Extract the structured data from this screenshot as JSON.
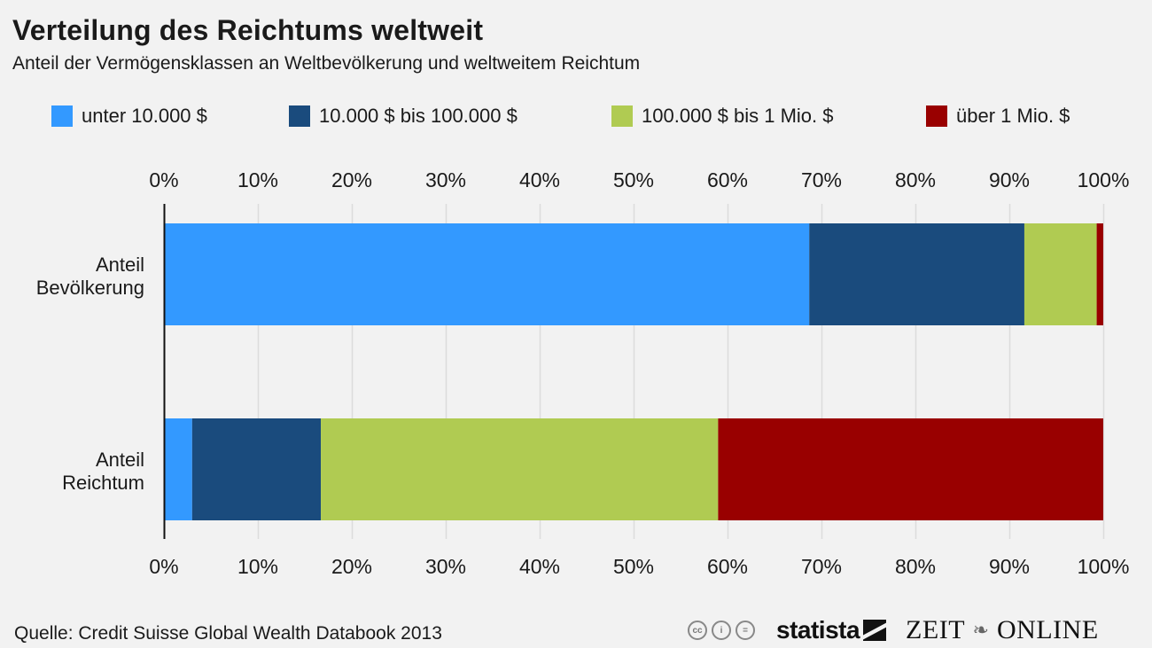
{
  "chart_data": {
    "type": "bar",
    "orientation": "horizontal",
    "stacked": true,
    "title": "Verteilung des Reichtums weltweit",
    "subtitle": "Anteil der Vermögensklassen an Weltbevölkerung und weltweitem Reichtum",
    "categories": [
      "Anteil Bevölkerung",
      "Anteil Reichtum"
    ],
    "category_lines": [
      [
        "Anteil",
        "Bevölkerung"
      ],
      [
        "Anteil",
        "Reichtum"
      ]
    ],
    "series": [
      {
        "name": "unter 10.000 $",
        "color": "#3399ff",
        "values": [
          68.7,
          3.0
        ]
      },
      {
        "name": "10.000 $ bis 100.000 $",
        "color": "#1a4b7d",
        "values": [
          22.9,
          13.7
        ]
      },
      {
        "name": "100.000 $ bis 1 Mio. $",
        "color": "#b0cb52",
        "values": [
          7.7,
          42.3
        ]
      },
      {
        "name": "über 1 Mio. $",
        "color": "#990000",
        "values": [
          0.7,
          41.0
        ]
      }
    ],
    "xlim": [
      0,
      100
    ],
    "xticks": [
      0,
      10,
      20,
      30,
      40,
      50,
      60,
      70,
      80,
      90,
      100
    ],
    "tick_labels": [
      "0%",
      "10%",
      "20%",
      "30%",
      "40%",
      "50%",
      "60%",
      "70%",
      "80%",
      "90%",
      "100%"
    ],
    "xlabel": "",
    "ylabel": "",
    "grid": true,
    "legend_position": "top",
    "axis_labels_position": "top-and-bottom"
  },
  "footer": {
    "source": "Quelle: Credit Suisse Global Wealth Databook 2013",
    "cc_icons": [
      "cc-icon",
      "by-person-icon",
      "nd-equal-icon"
    ],
    "cc_glyphs": [
      "cc",
      "i",
      "="
    ],
    "brand_statista": "statista",
    "brand_zeit_left": "ZEIT",
    "brand_zeit_right": "ONLINE",
    "zeit_emblem_glyph": "❧"
  }
}
